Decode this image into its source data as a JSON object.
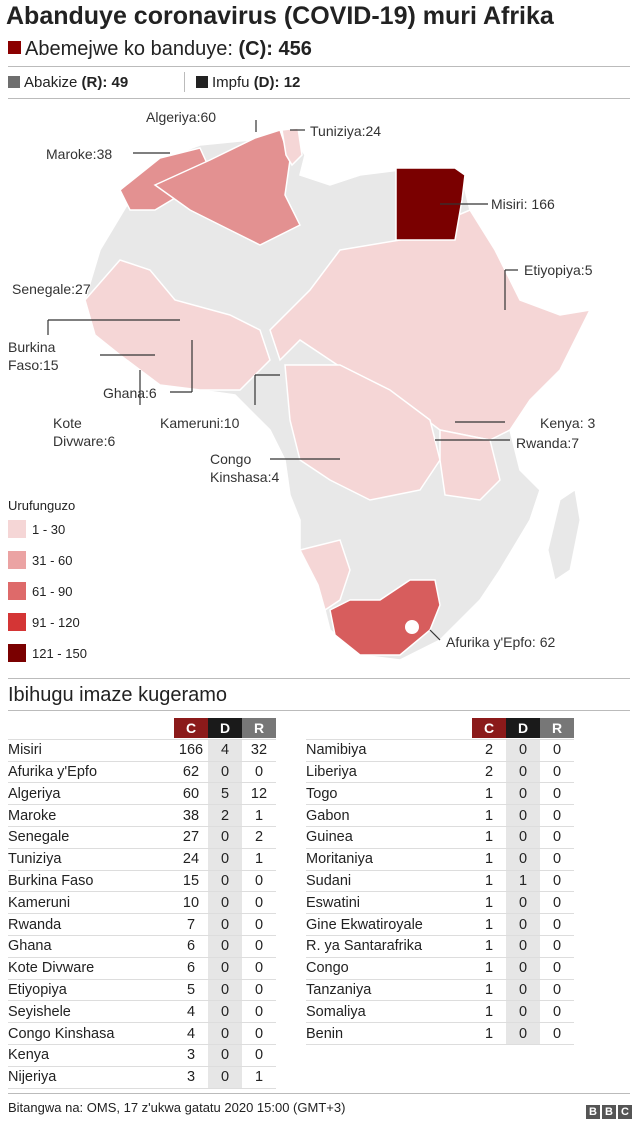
{
  "title": "Abanduye coronavirus (COVID-19) muri Afrika",
  "cases": {
    "label": "Abemejwe ko banduye:",
    "code": "(C):",
    "value": "456"
  },
  "recovered": {
    "label": "Abakize",
    "code": "(R):",
    "value": "49"
  },
  "deaths": {
    "label": "Impfu",
    "code": "(D):",
    "value": "12"
  },
  "colors": {
    "cases": "#8b0000",
    "recovered": "#6e6e6e",
    "deaths": "#222222",
    "c_header": "#8b1a1a",
    "d_header": "#1a1a1a",
    "r_header": "#777777"
  },
  "map_labels": {
    "algeria": "Algeriya:60",
    "tunisia": "Tuniziya:24",
    "morocco": "Maroke:38",
    "egypt": "Misiri: 166",
    "ethiopia": "Etiyopiya:5",
    "senegal": "Senegale:27",
    "burkina": [
      "Burkina",
      "Faso:15"
    ],
    "ghana": "Ghana:6",
    "cotedivoire": [
      "Kote",
      "Divware:6"
    ],
    "cameroon": "Kameruni:10",
    "congo": [
      "Congo",
      "Kinshasa:4"
    ],
    "kenya": "Kenya: 3",
    "rwanda": "Rwanda:7",
    "southafrica": "Afurika y'Epfo: 62"
  },
  "legend": {
    "title": "Urufunguzo",
    "items": [
      {
        "label": "1 - 30",
        "color": "#f5d6d6"
      },
      {
        "label": "31 - 60",
        "color": "#eba3a3"
      },
      {
        "label": "61 - 90",
        "color": "#de6a6a"
      },
      {
        "label": "91 - 120",
        "color": "#d43535"
      },
      {
        "label": "121 - 150",
        "color": "#7a0000"
      }
    ]
  },
  "table_title": "Ibihugu imaze kugeramo",
  "headers": {
    "c": "C",
    "d": "D",
    "r": "R"
  },
  "table_left": [
    {
      "name": "Misiri",
      "c": "166",
      "d": "4",
      "r": "32"
    },
    {
      "name": "Afurika y'Epfo",
      "c": "62",
      "d": "0",
      "r": "0"
    },
    {
      "name": "Algeriya",
      "c": "60",
      "d": "5",
      "r": "12"
    },
    {
      "name": "Maroke",
      "c": "38",
      "d": "2",
      "r": "1"
    },
    {
      "name": "Senegale",
      "c": "27",
      "d": "0",
      "r": "2"
    },
    {
      "name": "Tuniziya",
      "c": "24",
      "d": "0",
      "r": "1"
    },
    {
      "name": "Burkina Faso",
      "c": "15",
      "d": "0",
      "r": "0"
    },
    {
      "name": "Kameruni",
      "c": "10",
      "d": "0",
      "r": "0"
    },
    {
      "name": "Rwanda",
      "c": "7",
      "d": "0",
      "r": "0"
    },
    {
      "name": "Ghana",
      "c": "6",
      "d": "0",
      "r": "0"
    },
    {
      "name": "Kote Divware",
      "c": "6",
      "d": "0",
      "r": "0"
    },
    {
      "name": "Etiyopiya",
      "c": "5",
      "d": "0",
      "r": "0"
    },
    {
      "name": "Seyishele",
      "c": "4",
      "d": "0",
      "r": "0"
    },
    {
      "name": "Congo Kinshasa",
      "c": "4",
      "d": "0",
      "r": "0"
    },
    {
      "name": "Kenya",
      "c": "3",
      "d": "0",
      "r": "0"
    },
    {
      "name": "Nijeriya",
      "c": "3",
      "d": "0",
      "r": "1"
    }
  ],
  "table_right": [
    {
      "name": "Namibiya",
      "c": "2",
      "d": "0",
      "r": "0"
    },
    {
      "name": "Liberiya",
      "c": "2",
      "d": "0",
      "r": "0"
    },
    {
      "name": "Togo",
      "c": "1",
      "d": "0",
      "r": "0"
    },
    {
      "name": "Gabon",
      "c": "1",
      "d": "0",
      "r": "0"
    },
    {
      "name": "Guinea",
      "c": "1",
      "d": "0",
      "r": "0"
    },
    {
      "name": "Moritaniya",
      "c": "1",
      "d": "0",
      "r": "0"
    },
    {
      "name": "Sudani",
      "c": "1",
      "d": "1",
      "r": "0"
    },
    {
      "name": "Eswatini",
      "c": "1",
      "d": "0",
      "r": "0"
    },
    {
      "name": "Gine Ekwatiroyale",
      "c": "1",
      "d": "0",
      "r": "0"
    },
    {
      "name": "R. ya Santarafrika",
      "c": "1",
      "d": "0",
      "r": "0"
    },
    {
      "name": "Congo",
      "c": "1",
      "d": "0",
      "r": "0"
    },
    {
      "name": "Tanzaniya",
      "c": "1",
      "d": "0",
      "r": "0"
    },
    {
      "name": "Somaliya",
      "c": "1",
      "d": "0",
      "r": "0"
    },
    {
      "name": "Benin",
      "c": "1",
      "d": "0",
      "r": "0"
    }
  ],
  "footer": "Bitangwa na: OMS, 17 z'ukwa gatatu 2020  15:00 (GMT+3)",
  "logo": [
    "B",
    "B",
    "C"
  ]
}
